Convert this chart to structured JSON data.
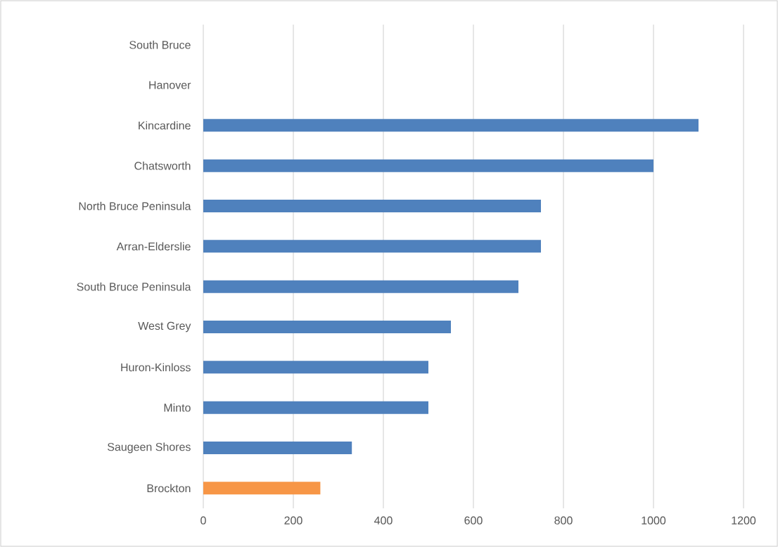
{
  "chart_data": {
    "type": "bar",
    "orientation": "horizontal",
    "categories": [
      "South Bruce",
      "Hanover",
      "Kincardine",
      "Chatsworth",
      "North Bruce Peninsula",
      "Arran-Elderslie",
      "South Bruce Peninsula",
      "West Grey",
      "Huron-Kinloss",
      "Minto",
      "Saugeen Shores",
      "Brockton"
    ],
    "values": [
      null,
      null,
      1100,
      1000,
      750,
      750,
      700,
      550,
      500,
      500,
      330,
      260
    ],
    "colors": [
      "#4f81bd",
      "#4f81bd",
      "#4f81bd",
      "#4f81bd",
      "#4f81bd",
      "#4f81bd",
      "#4f81bd",
      "#4f81bd",
      "#4f81bd",
      "#4f81bd",
      "#4f81bd",
      "#f79646"
    ],
    "xlim": [
      0,
      1200
    ],
    "xticks": [
      0,
      200,
      400,
      600,
      800,
      1000,
      1200
    ],
    "grid": "x"
  }
}
